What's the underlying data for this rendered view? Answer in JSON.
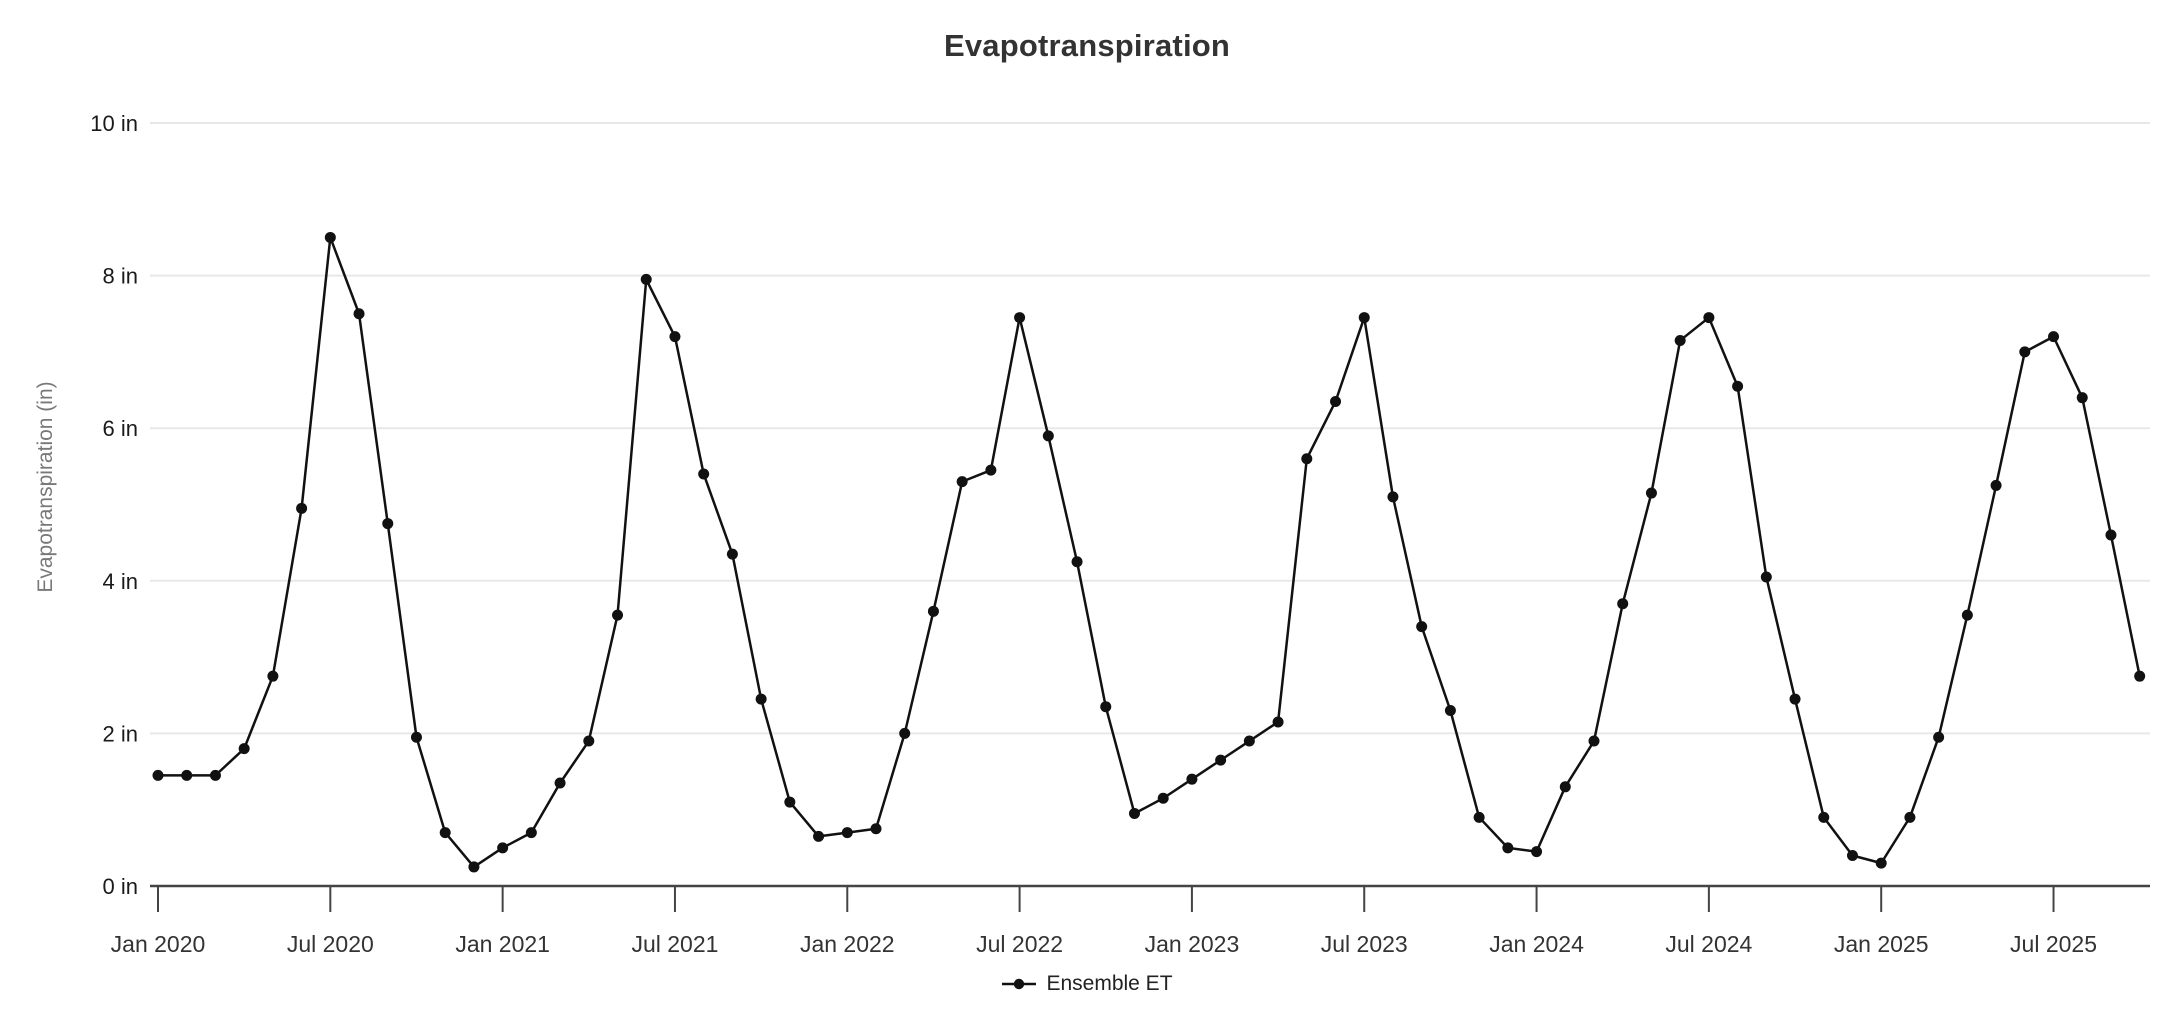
{
  "page": {
    "background": "#ffffff",
    "accent_color": "#111111",
    "gridline_color": "#e8e8e8",
    "axis_color": "#444444",
    "title_color": "#333333",
    "tick_label_color": "#333333",
    "y_axis_title_color": "#787878"
  },
  "chart_data": {
    "type": "line",
    "title": "Evapotranspiration",
    "xlabel": "",
    "ylabel": "Evapotranspiration (in)",
    "legend": [
      "Ensemble ET"
    ],
    "legend_position": "bottom-center",
    "grid": "horizontal",
    "ylim": [
      0,
      10
    ],
    "y_ticks": [
      {
        "value": 10,
        "label": "10 in"
      },
      {
        "value": 8,
        "label": "8 in"
      },
      {
        "value": 6,
        "label": "6 in"
      },
      {
        "value": 4,
        "label": "4 in"
      },
      {
        "value": 2,
        "label": "2 in"
      },
      {
        "value": 0,
        "label": "0 in"
      }
    ],
    "x_tick_labels": [
      "Jan 2020",
      "Jul 2020",
      "Jan 2021",
      "Jul 2021",
      "Jan 2022",
      "Jul 2022",
      "Jan 2023",
      "Jul 2023",
      "Jan 2024",
      "Jul 2024",
      "Jan 2025",
      "Jul 2025"
    ],
    "x_tick_month_interval": 6,
    "series": [
      {
        "name": "Ensemble ET",
        "color": "#111111",
        "marker": "circle",
        "x": [
          "Jan 2020",
          "Feb 2020",
          "Mar 2020",
          "Apr 2020",
          "May 2020",
          "Jun 2020",
          "Jul 2020",
          "Aug 2020",
          "Sep 2020",
          "Oct 2020",
          "Nov 2020",
          "Dec 2020",
          "Jan 2021",
          "Feb 2021",
          "Mar 2021",
          "Apr 2021",
          "May 2021",
          "Jun 2021",
          "Jul 2021",
          "Aug 2021",
          "Sep 2021",
          "Oct 2021",
          "Nov 2021",
          "Dec 2021",
          "Jan 2022",
          "Feb 2022",
          "Mar 2022",
          "Apr 2022",
          "May 2022",
          "Jun 2022",
          "Jul 2022",
          "Aug 2022",
          "Sep 2022",
          "Oct 2022",
          "Nov 2022",
          "Dec 2022",
          "Jan 2023",
          "Feb 2023",
          "Mar 2023",
          "Apr 2023",
          "May 2023",
          "Jun 2023",
          "Jul 2023",
          "Aug 2023",
          "Sep 2023",
          "Oct 2023",
          "Nov 2023",
          "Dec 2023",
          "Jan 2024",
          "Feb 2024",
          "Mar 2024",
          "Apr 2024",
          "May 2024",
          "Jun 2024",
          "Jul 2024",
          "Aug 2024",
          "Sep 2024",
          "Oct 2024",
          "Nov 2024",
          "Dec 2024",
          "Jan 2025",
          "Feb 2025",
          "Mar 2025",
          "Apr 2025",
          "May 2025",
          "Jun 2025",
          "Jul 2025",
          "Aug 2025",
          "Sep 2025",
          "Oct 2025"
        ],
        "values": [
          1.45,
          1.45,
          1.45,
          1.8,
          2.75,
          4.95,
          8.5,
          7.5,
          4.75,
          1.95,
          0.7,
          0.25,
          0.5,
          0.7,
          1.35,
          1.9,
          3.55,
          7.95,
          7.2,
          5.4,
          4.35,
          2.45,
          1.1,
          0.65,
          0.7,
          0.75,
          2.0,
          3.6,
          5.3,
          5.45,
          7.45,
          5.9,
          4.25,
          2.35,
          0.95,
          1.15,
          1.4,
          1.65,
          1.9,
          2.15,
          5.6,
          6.35,
          7.45,
          5.1,
          3.4,
          2.3,
          0.9,
          0.5,
          0.45,
          1.3,
          1.9,
          3.7,
          5.15,
          7.15,
          7.45,
          6.55,
          4.05,
          2.45,
          0.9,
          0.4,
          0.3,
          0.9,
          1.95,
          3.55,
          5.25,
          7.0,
          7.2,
          6.4,
          4.6,
          2.75
        ]
      }
    ]
  }
}
